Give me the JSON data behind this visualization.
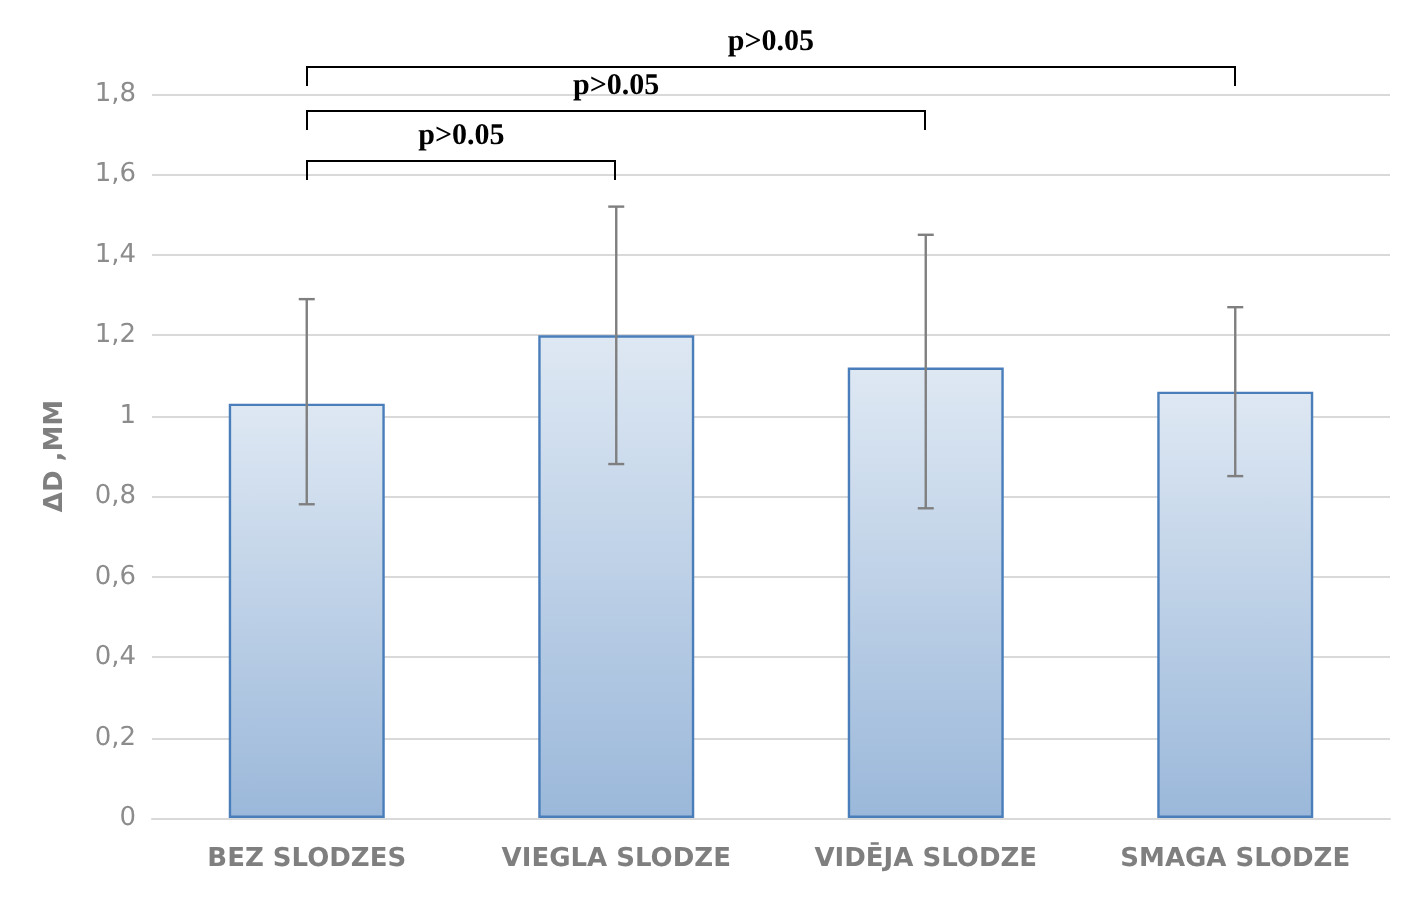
{
  "chart_data": {
    "type": "bar",
    "ylabel": "ΔD ,MM",
    "categories": [
      "BEZ SLODZES",
      "VIEGLA SLODZE",
      "VIDĒJA SLODZE",
      "SMAGA SLODZE"
    ],
    "values": [
      1.03,
      1.2,
      1.12,
      1.06
    ],
    "color": "#4a7ebb",
    "errors": [
      [
        0.78,
        1.29
      ],
      [
        0.88,
        1.52
      ],
      [
        0.77,
        1.45
      ],
      [
        0.85,
        1.27
      ]
    ],
    "ylim": [
      0,
      1.8
    ],
    "yticks": [
      0,
      {
        "value": 0.2,
        "label": "0,2"
      },
      {
        "value": 0.4,
        "label": "0,4"
      },
      {
        "value": 0.6,
        "label": "0,6"
      },
      {
        "value": 0.8,
        "label": "0,8"
      },
      1,
      {
        "value": 1.2,
        "label": "1,2"
      },
      {
        "value": 1.4,
        "label": "1,4"
      },
      {
        "value": 1.6,
        "label": "1,6"
      },
      {
        "value": 1.8,
        "label": "1,8"
      }
    ],
    "grid": "y",
    "annotations": [
      "p>0.05",
      "p>0.05",
      "p>0.05"
    ]
  }
}
